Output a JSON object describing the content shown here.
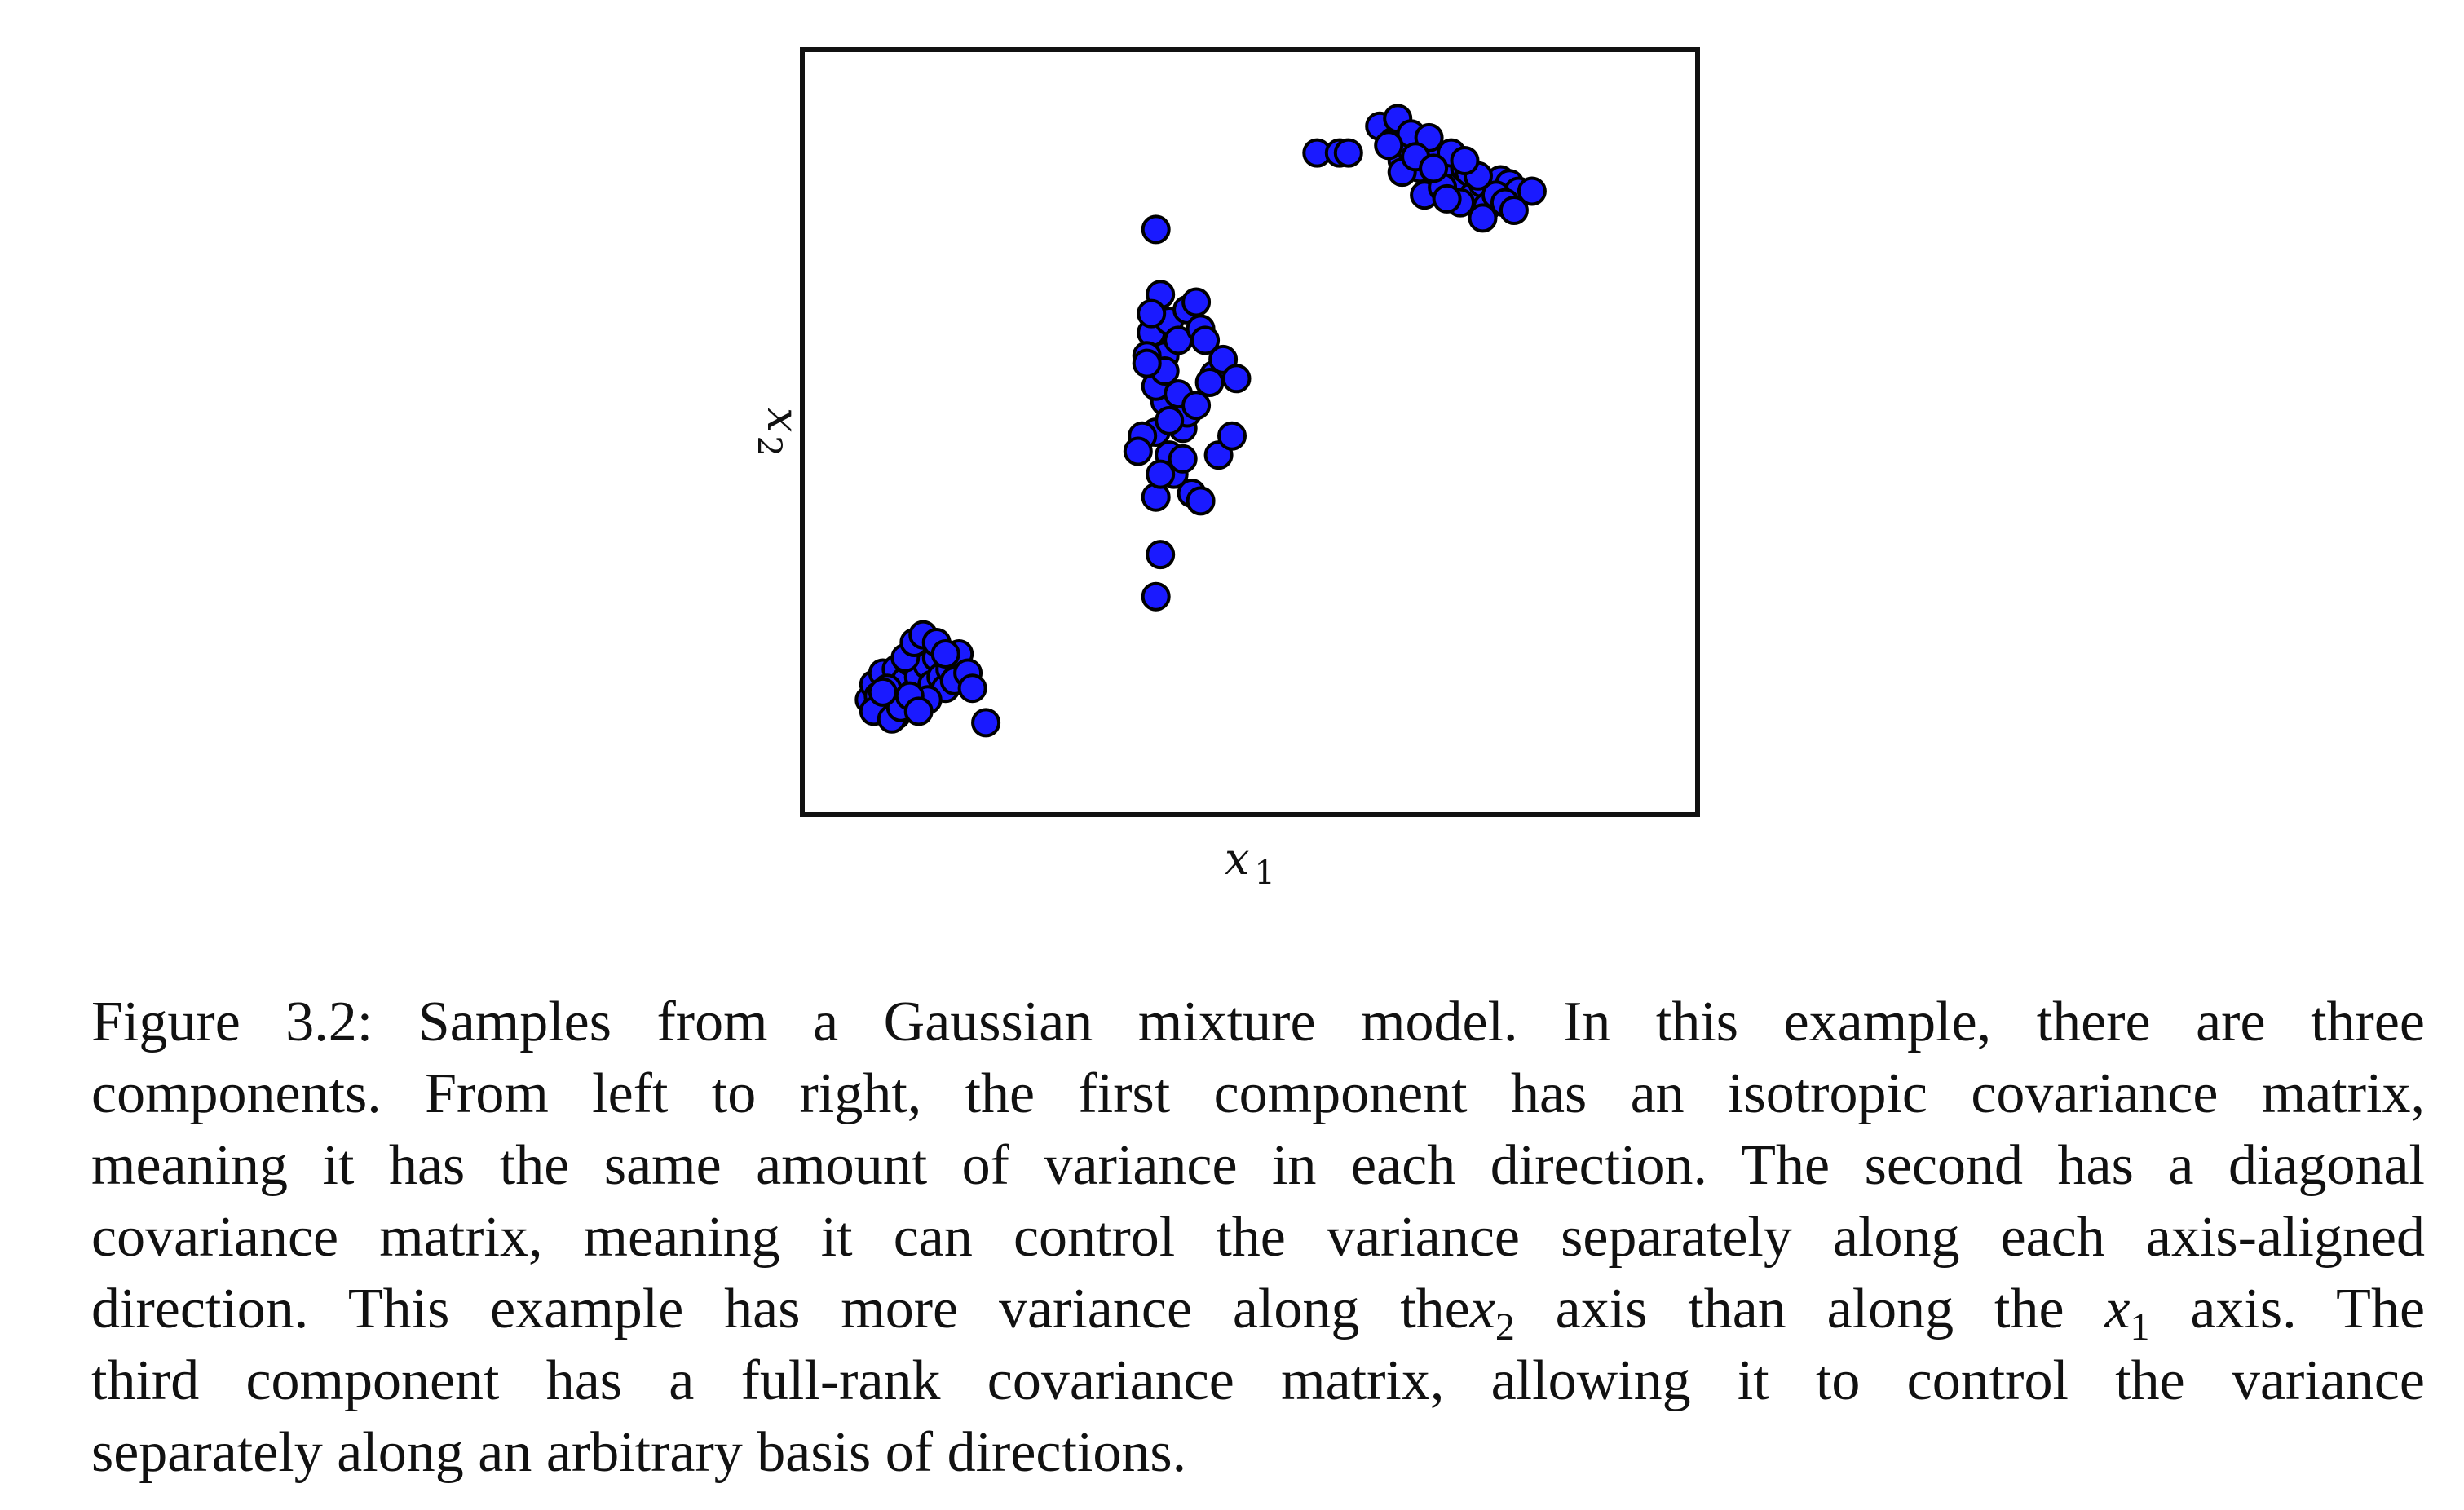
{
  "chart_data": {
    "type": "scatter",
    "title": "",
    "xlabel": "x1",
    "ylabel": "x2",
    "xlabel_parts": {
      "base": "x",
      "sub": "1"
    },
    "ylabel_parts": {
      "base": "x",
      "sub": "2"
    },
    "xlim": [
      0,
      100
    ],
    "ylim": [
      0,
      100
    ],
    "grid": false,
    "ticks": false,
    "marker_color": "#1a1aff",
    "marker_edge_color": "#000000",
    "series": [
      {
        "points": [
          [
            7.5,
            15.0
          ],
          [
            8.0,
            17.0
          ],
          [
            8.5,
            15.5
          ],
          [
            9.0,
            18.5
          ],
          [
            9.5,
            14.0
          ],
          [
            10.0,
            16.5
          ],
          [
            10.5,
            19.0
          ],
          [
            11.0,
            15.0
          ],
          [
            11.5,
            17.5
          ],
          [
            12.0,
            20.0
          ],
          [
            12.5,
            16.0
          ],
          [
            13.0,
            18.0
          ],
          [
            13.5,
            21.5
          ],
          [
            14.0,
            19.5
          ],
          [
            14.5,
            17.0
          ],
          [
            15.0,
            20.5
          ],
          [
            15.5,
            18.0
          ],
          [
            16.0,
            16.5
          ],
          [
            16.5,
            19.0
          ],
          [
            17.0,
            17.5
          ],
          [
            17.5,
            21.0
          ],
          [
            18.5,
            18.5
          ],
          [
            19.0,
            16.5
          ],
          [
            20.5,
            12.0
          ],
          [
            8.0,
            13.5
          ],
          [
            9.5,
            16.5
          ],
          [
            10.5,
            13.0
          ],
          [
            11.5,
            20.5
          ],
          [
            12.5,
            22.5
          ],
          [
            13.5,
            23.5
          ],
          [
            14.0,
            15.0
          ],
          [
            15.0,
            22.5
          ],
          [
            16.0,
            21.0
          ],
          [
            10.0,
            12.5
          ],
          [
            11.0,
            14.0
          ],
          [
            12.0,
            15.5
          ],
          [
            13.0,
            13.5
          ],
          [
            9.0,
            16.0
          ]
        ]
      },
      {
        "points": [
          [
            39.5,
            76.5
          ],
          [
            40.0,
            68.0
          ],
          [
            40.5,
            60.0
          ],
          [
            39.0,
            63.0
          ],
          [
            38.5,
            60.0
          ],
          [
            41.0,
            64.5
          ],
          [
            42.0,
            62.0
          ],
          [
            43.0,
            66.0
          ],
          [
            44.0,
            67.0
          ],
          [
            44.5,
            63.5
          ],
          [
            40.5,
            54.0
          ],
          [
            39.5,
            50.0
          ],
          [
            42.5,
            50.5
          ],
          [
            38.0,
            49.5
          ],
          [
            37.5,
            47.5
          ],
          [
            41.0,
            47.0
          ],
          [
            43.5,
            42.0
          ],
          [
            46.0,
            57.5
          ],
          [
            45.5,
            56.5
          ],
          [
            43.0,
            52.5
          ],
          [
            41.5,
            44.5
          ],
          [
            44.5,
            41.0
          ],
          [
            39.5,
            41.5
          ],
          [
            46.5,
            47.0
          ],
          [
            48.0,
            49.5
          ],
          [
            47.0,
            59.5
          ],
          [
            48.5,
            57.0
          ],
          [
            39.5,
            28.5
          ],
          [
            40.0,
            34.0
          ],
          [
            39.5,
            56.0
          ],
          [
            40.5,
            58.0
          ],
          [
            41.0,
            51.5
          ],
          [
            40.0,
            44.5
          ],
          [
            42.0,
            55.0
          ],
          [
            42.5,
            46.5
          ],
          [
            44.0,
            53.5
          ],
          [
            38.5,
            59.0
          ],
          [
            39.0,
            65.5
          ],
          [
            45.0,
            62.0
          ]
        ]
      },
      {
        "points": [
          [
            57.5,
            86.5
          ],
          [
            60.0,
            86.5
          ],
          [
            61.0,
            86.5
          ],
          [
            64.5,
            90.0
          ],
          [
            66.0,
            88.0
          ],
          [
            67.0,
            85.5
          ],
          [
            68.0,
            87.0
          ],
          [
            69.0,
            84.5
          ],
          [
            70.0,
            86.5
          ],
          [
            71.0,
            83.5
          ],
          [
            72.0,
            85.0
          ],
          [
            73.0,
            82.0
          ],
          [
            74.0,
            84.5
          ],
          [
            75.0,
            81.0
          ],
          [
            76.0,
            82.5
          ],
          [
            77.0,
            80.0
          ],
          [
            78.0,
            83.0
          ],
          [
            79.0,
            82.5
          ],
          [
            80.0,
            81.5
          ],
          [
            81.5,
            81.5
          ],
          [
            66.5,
            91.0
          ],
          [
            68.0,
            89.0
          ],
          [
            70.0,
            88.5
          ],
          [
            72.5,
            86.5
          ],
          [
            74.5,
            84.0
          ],
          [
            76.5,
            79.5
          ],
          [
            67.0,
            84.0
          ],
          [
            69.5,
            81.0
          ],
          [
            71.5,
            82.0
          ],
          [
            73.5,
            80.0
          ],
          [
            75.5,
            83.5
          ],
          [
            77.5,
            81.0
          ],
          [
            68.5,
            86.0
          ],
          [
            70.5,
            84.5
          ],
          [
            74.0,
            85.5
          ],
          [
            78.5,
            80.0
          ],
          [
            65.5,
            87.5
          ],
          [
            76.0,
            78.0
          ],
          [
            72.0,
            80.5
          ],
          [
            79.5,
            79.0
          ]
        ]
      }
    ]
  },
  "caption": {
    "lines": [
      [
        "Figure 3.2: Samples from a Gaussian mixture model. In this example, there are three"
      ],
      [
        "components. From left to right, the first component has an isotropic covariance matrix,"
      ],
      [
        "meaning it has the same amount of variance in each direction. The second has a diagonal"
      ],
      [
        "covariance matrix, meaning it can control the variance separately along each axis-aligned"
      ],
      [
        "direction. This example has more variance along the",
        {
          "base": "x",
          "sub": "2"
        },
        " axis than along the ",
        {
          "base": "x",
          "sub": "1"
        },
        " axis. The"
      ],
      [
        "third component has a full-rank covariance matrix, allowing it to control the variance"
      ],
      [
        "separately along an arbitrary basis of directions."
      ]
    ]
  }
}
